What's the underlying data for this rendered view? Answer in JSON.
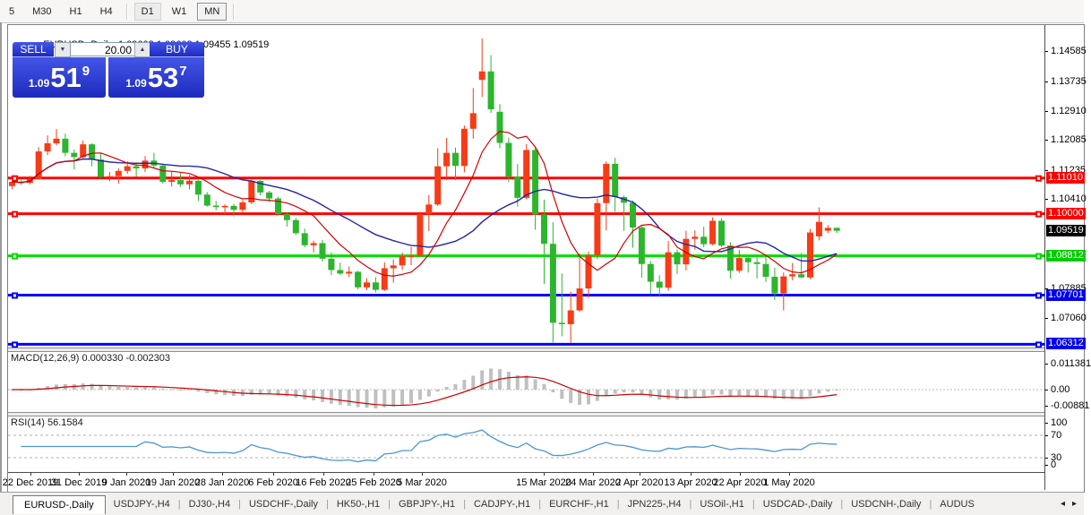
{
  "toolbar": {
    "items": [
      {
        "label": "5",
        "state": "normal"
      },
      {
        "label": "M30",
        "state": "normal"
      },
      {
        "label": "H1",
        "state": "normal"
      },
      {
        "label": "H4",
        "state": "normal"
      },
      {
        "label": "|",
        "state": "sep"
      },
      {
        "label": "D1",
        "state": "pressed"
      },
      {
        "label": "W1",
        "state": "normal"
      },
      {
        "label": "MN",
        "state": "raised"
      },
      {
        "label": "|",
        "state": "sep"
      }
    ]
  },
  "chart_header": {
    "collapse_icon": "▲",
    "title": "EURUSD-,Daily",
    "open": "1.09602",
    "high": "1.09602",
    "low": "1.09455",
    "close": "1.09519"
  },
  "trade_panel": {
    "sell_label": "SELL",
    "buy_label": "BUY",
    "volume": "20.00",
    "spinner_down": "▼",
    "spinner_up": "▲",
    "sell_price": {
      "prefix": "1.09",
      "big": "51",
      "sup": "9"
    },
    "buy_price": {
      "prefix": "1.09",
      "big": "53",
      "sup": "7"
    }
  },
  "chart_data": {
    "type": "candlestick",
    "symbol": "EURUSD-",
    "timeframe": "Daily",
    "up_color": "#f63b17",
    "down_color": "#2db52d",
    "ma_fast": {
      "type": "sma",
      "period": 8,
      "color": "#d40000"
    },
    "ma_slow": {
      "type": "sma",
      "period": 20,
      "color": "#2424aa"
    },
    "candles": [
      [
        1.1078,
        1.1096,
        1.1069,
        1.109
      ],
      [
        1.109,
        1.1098,
        1.1081,
        1.1087
      ],
      [
        1.1087,
        1.1107,
        1.1083,
        1.1098
      ],
      [
        1.1098,
        1.1188,
        1.1096,
        1.1176
      ],
      [
        1.1176,
        1.1221,
        1.1166,
        1.1199
      ],
      [
        1.1199,
        1.1239,
        1.1193,
        1.1212
      ],
      [
        1.1212,
        1.1226,
        1.1162,
        1.1172
      ],
      [
        1.1172,
        1.1181,
        1.1125,
        1.116
      ],
      [
        1.116,
        1.1207,
        1.1153,
        1.1196
      ],
      [
        1.1196,
        1.1199,
        1.1134,
        1.1153
      ],
      [
        1.1153,
        1.117,
        1.1101,
        1.1104
      ],
      [
        1.1104,
        1.1118,
        1.1092,
        1.1106
      ],
      [
        1.1106,
        1.1128,
        1.1085,
        1.1121
      ],
      [
        1.1121,
        1.1148,
        1.1113,
        1.1134
      ],
      [
        1.1134,
        1.1145,
        1.1104,
        1.1128
      ],
      [
        1.1128,
        1.1163,
        1.1118,
        1.115
      ],
      [
        1.115,
        1.1172,
        1.1129,
        1.1136
      ],
      [
        1.1136,
        1.1141,
        1.1085,
        1.109
      ],
      [
        1.109,
        1.1119,
        1.1077,
        1.1095
      ],
      [
        1.1095,
        1.1118,
        1.1076,
        1.1083
      ],
      [
        1.1083,
        1.1109,
        1.1069,
        1.1093
      ],
      [
        1.1093,
        1.1096,
        1.1036,
        1.1054
      ],
      [
        1.1054,
        1.1061,
        1.102,
        1.1023
      ],
      [
        1.1023,
        1.1036,
        1.101,
        1.1019
      ],
      [
        1.1019,
        1.1027,
        1.0998,
        1.1022
      ],
      [
        1.1022,
        1.1028,
        1.0992,
        1.1011
      ],
      [
        1.1011,
        1.1039,
        1.1001,
        1.1032
      ],
      [
        1.1032,
        1.1096,
        1.1027,
        1.1093
      ],
      [
        1.1093,
        1.1095,
        1.1052,
        1.106
      ],
      [
        1.106,
        1.1065,
        1.1033,
        1.1043
      ],
      [
        1.1043,
        1.1048,
        1.0994,
        1.0999
      ],
      [
        1.0999,
        1.1003,
        1.0964,
        1.0982
      ],
      [
        1.0982,
        1.0988,
        1.0941,
        1.0945
      ],
      [
        1.0945,
        1.0958,
        1.0905,
        1.0911
      ],
      [
        1.0911,
        1.0924,
        1.0891,
        1.0917
      ],
      [
        1.0917,
        1.0926,
        1.0865,
        1.0873
      ],
      [
        1.0873,
        1.0891,
        1.0827,
        1.0841
      ],
      [
        1.0841,
        1.0862,
        1.0827,
        1.0831
      ],
      [
        1.0831,
        1.0851,
        1.0821,
        1.0836
      ],
      [
        1.0836,
        1.0839,
        1.0786,
        1.0792
      ],
      [
        1.0792,
        1.0818,
        1.0784,
        1.0806
      ],
      [
        1.0806,
        1.0821,
        1.0778,
        1.0785
      ],
      [
        1.0785,
        1.0863,
        1.0782,
        1.0846
      ],
      [
        1.0846,
        1.0871,
        1.0805,
        1.0854
      ],
      [
        1.0854,
        1.089,
        1.0841,
        1.088
      ],
      [
        1.088,
        1.0906,
        1.0855,
        1.0881
      ],
      [
        1.0881,
        1.1006,
        1.0878,
        1.0999
      ],
      [
        1.0999,
        1.1053,
        1.0951,
        1.1026
      ],
      [
        1.1026,
        1.1185,
        1.1022,
        1.1134
      ],
      [
        1.1134,
        1.1214,
        1.1095,
        1.1172
      ],
      [
        1.1172,
        1.1187,
        1.1095,
        1.1135
      ],
      [
        1.1135,
        1.1249,
        1.1117,
        1.124
      ],
      [
        1.124,
        1.1355,
        1.1212,
        1.1284
      ],
      [
        1.1378,
        1.1495,
        1.133,
        1.1402
      ],
      [
        1.1402,
        1.1448,
        1.1285,
        1.1295
      ],
      [
        1.1288,
        1.131,
        1.1185,
        1.12
      ],
      [
        1.12,
        1.1215,
        1.109,
        1.1105
      ],
      [
        1.1105,
        1.114,
        1.102,
        1.1045
      ],
      [
        1.1045,
        1.1197,
        1.104,
        1.118
      ],
      [
        1.118,
        1.1189,
        1.0955,
        1.0998
      ],
      [
        1.0998,
        1.104,
        1.0802,
        1.0915
      ],
      [
        1.0915,
        1.0976,
        1.0636,
        1.0692
      ],
      [
        1.0692,
        1.0831,
        1.0654,
        1.0688
      ],
      [
        1.0688,
        1.078,
        1.0635,
        1.0727
      ],
      [
        1.0727,
        1.0888,
        1.0723,
        1.0789
      ],
      [
        1.0789,
        1.0893,
        1.0762,
        1.0883
      ],
      [
        1.0883,
        1.1043,
        1.0872,
        1.103
      ],
      [
        1.103,
        1.1148,
        1.0953,
        1.1141
      ],
      [
        1.1141,
        1.1158,
        1.1005,
        1.1047
      ],
      [
        1.1047,
        1.1052,
        1.0952,
        1.1031
      ],
      [
        1.1031,
        1.1037,
        1.0904,
        1.0961
      ],
      [
        1.0961,
        1.0966,
        1.0819,
        1.0858
      ],
      [
        1.0858,
        1.0867,
        1.0773,
        1.0808
      ],
      [
        1.0808,
        1.0826,
        1.0768,
        1.0791
      ],
      [
        1.0791,
        1.0923,
        1.0783,
        1.0891
      ],
      [
        1.0891,
        1.0899,
        1.083,
        1.0857
      ],
      [
        1.0857,
        1.0952,
        1.084,
        1.0929
      ],
      [
        1.0929,
        1.0953,
        1.0899,
        1.0935
      ],
      [
        1.0935,
        1.0963,
        1.0905,
        1.0914
      ],
      [
        1.0914,
        1.099,
        1.0911,
        1.098
      ],
      [
        1.098,
        1.0987,
        1.0906,
        1.091
      ],
      [
        1.091,
        1.092,
        1.0817,
        1.0839
      ],
      [
        1.0839,
        1.0898,
        1.0833,
        1.0875
      ],
      [
        1.0875,
        1.0879,
        1.0834,
        1.0863
      ],
      [
        1.0863,
        1.088,
        1.0817,
        1.0858
      ],
      [
        1.0858,
        1.0884,
        1.0807,
        1.0822
      ],
      [
        1.0822,
        1.0847,
        1.0756,
        1.0775
      ],
      [
        1.0775,
        1.0834,
        1.0727,
        1.0823
      ],
      [
        1.0823,
        1.0861,
        1.0812,
        1.0829
      ],
      [
        1.0829,
        1.0889,
        1.0818,
        1.082
      ],
      [
        1.082,
        1.0957,
        1.0815,
        1.0947
      ],
      [
        1.0936,
        1.1018,
        1.0925,
        1.0977
      ],
      [
        1.0952,
        1.0968,
        1.0945,
        1.096
      ],
      [
        1.09602,
        1.09602,
        1.09455,
        1.09519
      ]
    ],
    "hlines": [
      {
        "price": 1.1101,
        "label": "1.11010",
        "color": "#ff0000",
        "badge": "#ff0000"
      },
      {
        "price": 1.1,
        "label": "1.10000",
        "color": "#ff0000",
        "badge": "#ff0000"
      },
      {
        "price": 1.08812,
        "label": "1.08812",
        "color": "#00dd00",
        "badge": "#00cc00"
      },
      {
        "price": 1.07701,
        "label": "1.07701",
        "color": "#0000ff",
        "badge": "#0000ee"
      },
      {
        "price": 1.06312,
        "label": "1.06312",
        "color": "#0000ff",
        "badge": "#0000ee"
      }
    ],
    "current_price": {
      "label": "1.09519",
      "value": 1.09519,
      "badge": "#000000"
    },
    "y_ticks": [
      {
        "label": "1.14585",
        "value": 1.14585
      },
      {
        "label": "1.13735",
        "value": 1.13735
      },
      {
        "label": "1.12910",
        "value": 1.1291
      },
      {
        "label": "1.12085",
        "value": 1.12085
      },
      {
        "label": "1.11235",
        "value": 1.11235
      },
      {
        "label": "1.10410",
        "value": 1.1041
      },
      {
        "label": "1.07885",
        "value": 1.07885
      },
      {
        "label": "1.07060",
        "value": 1.0706
      }
    ],
    "x_labels": [
      {
        "label": "22 Dec 2019",
        "x": 25
      },
      {
        "label": "31 Dec 2019",
        "x": 79
      },
      {
        "label": "9 Jan 2020",
        "x": 132
      },
      {
        "label": "19 Jan 2020",
        "x": 184
      },
      {
        "label": "28 Jan 2020",
        "x": 239
      },
      {
        "label": "6 Feb 2020",
        "x": 296
      },
      {
        "label": "16 Feb 2020",
        "x": 352
      },
      {
        "label": "25 Feb 2020",
        "x": 408
      },
      {
        "label": "5 Mar 2020",
        "x": 462
      },
      {
        "label": "15 Mar 2020",
        "x": 598
      },
      {
        "label": "24 Mar 2020",
        "x": 653
      },
      {
        "label": "2 Apr 2020",
        "x": 705
      },
      {
        "label": "13 Apr 2020",
        "x": 762
      },
      {
        "label": "22 Apr 2020",
        "x": 817
      },
      {
        "label": "1 May 2020",
        "x": 872
      }
    ]
  },
  "macd_panel": {
    "title": "MACD(12,26,9)",
    "main_value": "0.000330",
    "signal_value": "-0.002303",
    "fast": 12,
    "slow": 26,
    "signal": 9,
    "axis_labels": [
      {
        "label": "0.011381",
        "y": 406
      },
      {
        "label": "0.00",
        "y": 435
      },
      {
        "label": "-0.00881",
        "y": 453
      }
    ],
    "histogram_color": "#c0c0c0",
    "signal_color": "#cc0000"
  },
  "rsi_panel": {
    "title": "RSI(14)",
    "value": "56.1584",
    "period": 14,
    "axis_labels": [
      {
        "label": "100",
        "y": 472
      },
      {
        "label": "70",
        "y": 486
      },
      {
        "label": "30",
        "y": 511
      },
      {
        "label": "0",
        "y": 519
      }
    ],
    "levels": [
      70,
      30
    ],
    "line_color": "#4a96d2"
  },
  "tab_bar": {
    "tabs": [
      {
        "label": "EURUSD-,Daily",
        "active": true
      },
      {
        "label": "USDJPY-,H4",
        "active": false
      },
      {
        "label": "DJ30-,H4",
        "active": false
      },
      {
        "label": "USDCHF-,Daily",
        "active": false
      },
      {
        "label": "HK50-,H1",
        "active": false
      },
      {
        "label": "GBPJPY-,H1",
        "active": false
      },
      {
        "label": "CADJPY-,H1",
        "active": false
      },
      {
        "label": "EURCHF-,H1",
        "active": false
      },
      {
        "label": "JPN225-,H4",
        "active": false
      },
      {
        "label": "USOil-,H1",
        "active": false
      },
      {
        "label": "USDCAD-,Daily",
        "active": false
      },
      {
        "label": "USDCNH-,Daily",
        "active": false
      },
      {
        "label": "AUDUS",
        "active": false
      }
    ],
    "scroll_left": "◂",
    "scroll_right": "▸"
  }
}
